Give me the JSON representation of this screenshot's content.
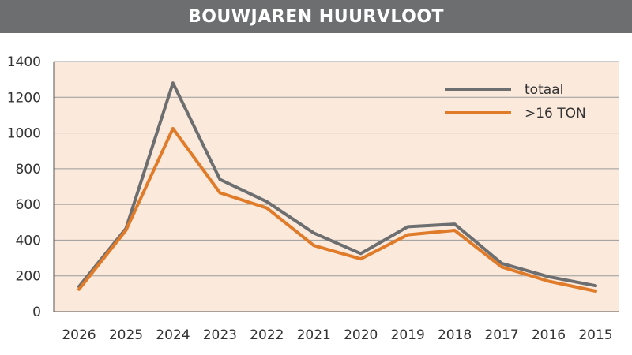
{
  "header": {
    "title": "BOUWJAREN HUURVLOOT"
  },
  "colors": {
    "header_bg": "#6d6e70",
    "plot_bg": "#fbe9dc",
    "grid": "#9a9a9a"
  },
  "chart_data": {
    "type": "line",
    "title": "BOUWJAREN HUURVLOOT",
    "xlabel": "",
    "ylabel": "",
    "categories": [
      "2026",
      "2025",
      "2024",
      "2023",
      "2022",
      "2021",
      "2020",
      "2019",
      "2018",
      "2017",
      "2016",
      "2015"
    ],
    "ylim": [
      0,
      1400
    ],
    "yticks": [
      0,
      200,
      400,
      600,
      800,
      1000,
      1200,
      1400
    ],
    "grid": true,
    "legend_position": "top-right",
    "series": [
      {
        "name": "totaal",
        "color": "#6d6e70",
        "values": [
          140,
          465,
          1280,
          740,
          615,
          440,
          325,
          475,
          490,
          270,
          195,
          145
        ]
      },
      {
        "name": ">16 TON",
        "color": "#e07b29",
        "values": [
          125,
          455,
          1025,
          665,
          580,
          370,
          295,
          430,
          455,
          250,
          170,
          115
        ]
      }
    ]
  }
}
